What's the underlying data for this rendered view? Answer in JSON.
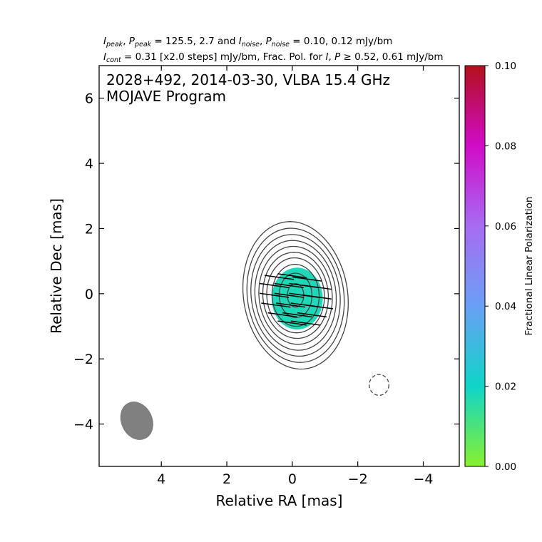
{
  "header": {
    "line1": {
      "i_sym": "I",
      "i_sub": "peak",
      "comma1": ", ",
      "p_sym": "P",
      "p_sub": "peak",
      "peak_values": " = 125.5, 2.7 and ",
      "i2_sym": "I",
      "i2_sub": "noise",
      "comma2": ", ",
      "p2_sym": "P",
      "p2_sub": "noise",
      "noise_values": " = 0.10, 0.12 mJy/bm"
    },
    "line2": {
      "i_sym": "I",
      "i_sub": "cont",
      "cont_text": " = 0.31 [x2.0 steps] mJy/bm, Frac. Pol. for ",
      "i2_sym": "I",
      "comma": ", ",
      "p_sym": "P",
      "threshold_text": " ≥  0.52, 0.61 mJy/bm"
    }
  },
  "chart_data": {
    "type": "heatmap",
    "title": "2028+492, 2014-03-30, VLBA 15.4 GHz",
    "subtitle": "MOJAVE Program",
    "xlabel": "Relative RA [mas]",
    "ylabel": "Relative Dec [mas]",
    "xlim": [
      5.9,
      -5.1
    ],
    "ylim": [
      -5.3,
      7.0
    ],
    "x_ticks": [
      4,
      2,
      0,
      -2,
      -4
    ],
    "x_tick_labels": [
      "4",
      "2",
      "0",
      "−2",
      "−4"
    ],
    "y_ticks": [
      -4,
      -2,
      0,
      2,
      4,
      6
    ],
    "y_tick_labels": [
      "−4",
      "−2",
      "0",
      "2",
      "4",
      "6"
    ],
    "colorbar": {
      "label": "Fractional Linear Polarization",
      "range": [
        0.0,
        0.1
      ],
      "ticks": [
        0.0,
        0.02,
        0.04,
        0.06,
        0.08,
        0.1
      ],
      "tick_labels": [
        "0.00",
        "0.02",
        "0.04",
        "0.06",
        "0.08",
        "0.10"
      ],
      "stops": [
        {
          "value": 0.0,
          "color": "#88f12e"
        },
        {
          "value": 0.02,
          "color": "#0fd5c8"
        },
        {
          "value": 0.04,
          "color": "#6aa0f5"
        },
        {
          "value": 0.06,
          "color": "#a76cf2"
        },
        {
          "value": 0.08,
          "color": "#d10bc8"
        },
        {
          "value": 0.1,
          "color": "#b2101c"
        }
      ]
    },
    "stokes_contours": {
      "base_mJy_per_beam": 0.31,
      "step_factor": 2.0,
      "color": "#444444",
      "levels_semi_axes_mas": [
        [
          0.25,
          0.36
        ],
        [
          0.5,
          0.68
        ],
        [
          0.72,
          0.95
        ],
        [
          0.88,
          1.15
        ],
        [
          1.0,
          1.32
        ],
        [
          1.12,
          1.5
        ],
        [
          1.24,
          1.68
        ],
        [
          1.36,
          1.86
        ],
        [
          1.48,
          2.05
        ],
        [
          1.6,
          2.25
        ]
      ],
      "center": [
        -0.1,
        -0.05
      ],
      "negative_contour": {
        "center": [
          -2.65,
          -2.8
        ],
        "semi_axes": [
          0.3,
          0.32
        ],
        "style": "dashed"
      }
    },
    "fractional_polarization_region": {
      "center": [
        -0.15,
        -0.15
      ],
      "semi_axes": [
        0.78,
        0.95
      ],
      "value": 0.022,
      "color": "#1ed8b8"
    },
    "evpa_ticks": {
      "color": "#000000",
      "length_mas": 0.9,
      "angle_deg": 8,
      "positions": [
        [
          0.4,
          0.5
        ],
        [
          0.0,
          0.55
        ],
        [
          -0.45,
          0.45
        ],
        [
          0.55,
          0.25
        ],
        [
          0.1,
          0.25
        ],
        [
          -0.35,
          0.25
        ],
        [
          -0.75,
          0.2
        ],
        [
          0.55,
          -0.05
        ],
        [
          0.1,
          -0.05
        ],
        [
          -0.35,
          -0.05
        ],
        [
          -0.75,
          -0.1
        ],
        [
          0.5,
          -0.35
        ],
        [
          0.05,
          -0.35
        ],
        [
          -0.4,
          -0.35
        ],
        [
          -0.8,
          -0.4
        ],
        [
          0.3,
          -0.65
        ],
        [
          -0.15,
          -0.65
        ],
        [
          -0.6,
          -0.65
        ],
        [
          0.0,
          -0.9
        ],
        [
          -0.4,
          -0.9
        ]
      ]
    },
    "beam": {
      "center": [
        4.75,
        -3.9
      ],
      "semi_axes": [
        0.47,
        0.6
      ],
      "angle_deg": -25,
      "color": "#808080"
    }
  }
}
